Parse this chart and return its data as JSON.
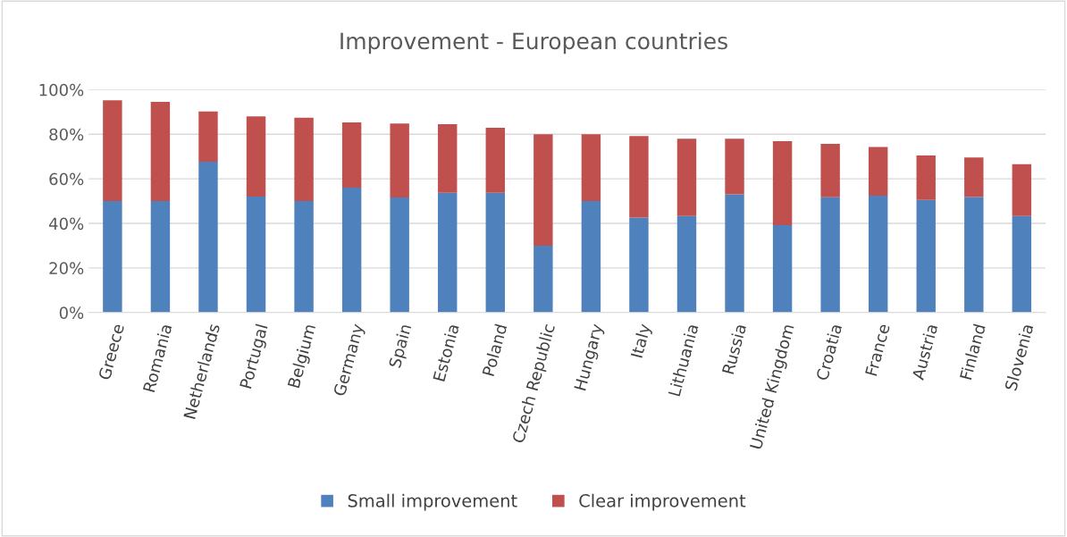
{
  "chart_data": {
    "type": "bar",
    "title": "Improvement - European countries",
    "stacked": true,
    "categories": [
      "Greece",
      "Romania",
      "Netherlands",
      "Portugal",
      "Belgium",
      "Germany",
      "Spain",
      "Estonia",
      "Poland",
      "Czech Republic",
      "Hungary",
      "Italy",
      "Lithuania",
      "Russia",
      "United Kingdom",
      "Croatia",
      "France",
      "Austria",
      "Finland",
      "Slovenia"
    ],
    "series": [
      {
        "name": "Small improvement",
        "color": "#4f81bd",
        "values": [
          50,
          50,
          67.7,
          52,
          50,
          56,
          51.6,
          53.7,
          53.7,
          30,
          50,
          42.6,
          43.3,
          53,
          39.2,
          51.7,
          52.4,
          50.5,
          51.8,
          43.3
        ]
      },
      {
        "name": "Clear improvement",
        "color": "#c0504d",
        "values": [
          45.2,
          44.5,
          22.5,
          36,
          37.4,
          29.3,
          33.2,
          30.8,
          29.2,
          50,
          30,
          36.6,
          34.7,
          25,
          37.7,
          24,
          21.9,
          20,
          17.8,
          23.3
        ]
      }
    ],
    "ylim": [
      0,
      100
    ],
    "yticks": [
      {
        "value": 0,
        "label": "0%"
      },
      {
        "value": 20,
        "label": "20%"
      },
      {
        "value": 40,
        "label": "40%"
      },
      {
        "value": 60,
        "label": "60%"
      },
      {
        "value": 80,
        "label": "80%"
      },
      {
        "value": 100,
        "label": "100%"
      }
    ],
    "grid": "y",
    "legend": "bottom"
  }
}
